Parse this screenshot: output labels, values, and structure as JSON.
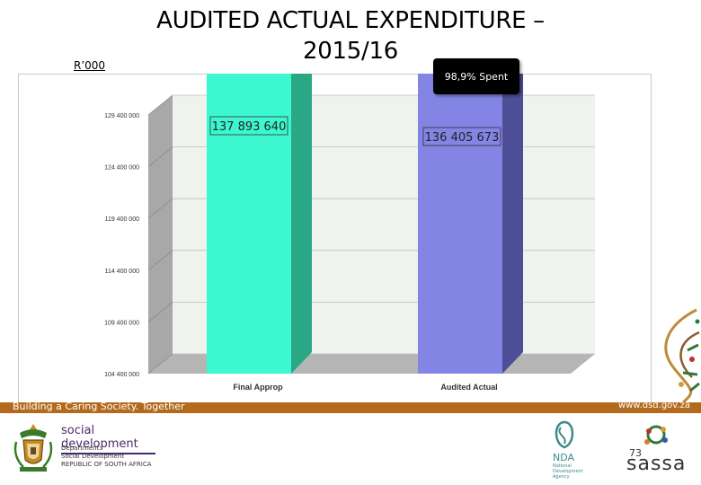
{
  "slide": {
    "title_line1": "AUDITED ACTUAL EXPENDITURE –",
    "title_line2": "2015/16",
    "unit_label": "R’000",
    "spent_badge": "98,9% Spent",
    "page_number": "73"
  },
  "footer": {
    "tagline": "Building a Caring Society. Together",
    "website": "www.dsd.gov.za",
    "dept_name": "social development",
    "dept_lines": [
      "Department:",
      "Social Development",
      "REPUBLIC OF SOUTH AFRICA"
    ],
    "nda_name": "NDA",
    "nda_sub": [
      "National",
      "Development",
      "Agency"
    ],
    "sassa_name": "sassa"
  },
  "colors": {
    "bar1_front": "#3cf7cf",
    "bar1_side": "#2aa784",
    "bar1_top": "#33d8b0",
    "bar2_front": "#8484e4",
    "bar2_side": "#4e4e96",
    "bar2_top": "#6b6bc4",
    "plot_back": "#eef3ee",
    "plot_wall": "#a8a8a8",
    "plot_floor": "#b5b5b5",
    "grid": "#8a8a8a",
    "footer_band": "#b36a1c"
  },
  "chart_data": {
    "type": "bar",
    "categories": [
      "Final Approp",
      "Audited Actual"
    ],
    "values": [
      137893640,
      136405673
    ],
    "data_labels": [
      "137 893 640",
      "136 405 673"
    ],
    "ylim": [
      104400000,
      129400000
    ],
    "yticks": [
      104400000,
      109400000,
      114400000,
      119400000,
      124400000,
      129400000
    ],
    "ytick_labels": [
      "104 400 000",
      "109 400 000",
      "114 400 000",
      "119 400 000",
      "124 400 000",
      "129 400 000"
    ],
    "grid": true,
    "three_d": true
  }
}
